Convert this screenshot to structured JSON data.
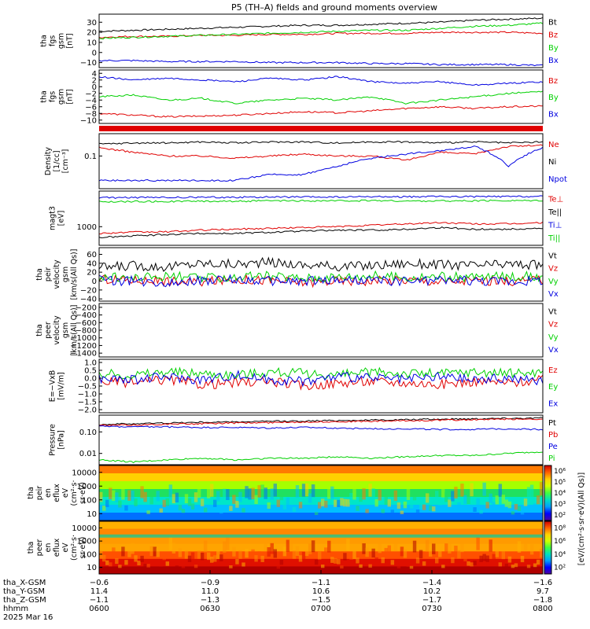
{
  "title": "P5 (TH–A) fields and ground moments overview",
  "colors": {
    "black": "#000000",
    "red": "#e00000",
    "green": "#00d000",
    "blue": "#0000e0"
  },
  "chart_data": [
    {
      "type": "line",
      "ylabel": [
        "tha",
        "fgs",
        "gsm",
        "[nT]"
      ],
      "yticks": [
        "30",
        "20",
        "10",
        "0",
        "−10"
      ],
      "ylim": [
        -15,
        38
      ],
      "series": [
        {
          "name": "Bt",
          "color": "#000000",
          "values": [
            21,
            22,
            23,
            24,
            25,
            26,
            27,
            27,
            28,
            29,
            30,
            32,
            33,
            34
          ]
        },
        {
          "name": "Bz",
          "color": "#e00000",
          "values": [
            15,
            16,
            16,
            17,
            17,
            18,
            18,
            19,
            19,
            19,
            20,
            20,
            20,
            19
          ]
        },
        {
          "name": "By",
          "color": "#00d000",
          "values": [
            14,
            15,
            16,
            17,
            18,
            19,
            20,
            21,
            22,
            22,
            24,
            26,
            27,
            29
          ]
        },
        {
          "name": "Bx",
          "color": "#0000e0",
          "values": [
            -8,
            -8,
            -9,
            -9,
            -9,
            -10,
            -10,
            -10,
            -11,
            -11,
            -12,
            -12,
            -12,
            -13
          ]
        }
      ]
    },
    {
      "type": "line",
      "ylabel": [
        "tha",
        "fgs",
        "gsm",
        "[nT]"
      ],
      "yticks": [
        "4",
        "2",
        "0",
        "−2",
        "−4",
        "−6",
        "−8",
        "−10"
      ],
      "ylim": [
        -11,
        5
      ],
      "series": [
        {
          "name": "Bz",
          "color": "#e00000",
          "values": [
            -8,
            -8.5,
            -9,
            -8.8,
            -8.5,
            -8,
            -7.5,
            -7.8,
            -7.2,
            -6.5,
            -6,
            -6.5,
            -6,
            -5.8
          ]
        },
        {
          "name": "By",
          "color": "#00d000",
          "values": [
            -3,
            -2.5,
            -4,
            -3.5,
            -5,
            -4,
            -3.5,
            -4,
            -3,
            -5,
            -4,
            -3,
            -2,
            -1.5
          ]
        },
        {
          "name": "Bx",
          "color": "#0000e0",
          "values": [
            3,
            2,
            2.5,
            2,
            1.5,
            2.5,
            2,
            3,
            1.5,
            1,
            1.5,
            0.5,
            1,
            1.5
          ]
        }
      ]
    },
    {
      "type": "line",
      "ylabel": [
        "Density",
        "[1/cc]",
        "[cm⁻³]"
      ],
      "yticks": [
        "0.1"
      ],
      "ylim": [
        0.02,
        0.3
      ],
      "log": true,
      "series": [
        {
          "name": "Ne",
          "color": "#e00000",
          "values": [
            0.15,
            0.12,
            0.1,
            0.1,
            0.09,
            0.1,
            0.11,
            0.1,
            0.1,
            0.08,
            0.12,
            0.11,
            0.16,
            0.17
          ]
        },
        {
          "name": "Ni",
          "color": "#000000",
          "values": [
            0.18,
            0.19,
            0.19,
            0.2,
            0.19,
            0.2,
            0.2,
            0.19,
            0.2,
            0.2,
            0.19,
            0.2,
            0.19,
            0.2
          ]
        },
        {
          "name": "Npot",
          "color": "#0000e0",
          "values": [
            0.03,
            0.03,
            0.03,
            0.03,
            0.03,
            0.04,
            0.04,
            0.06,
            0.09,
            0.11,
            0.13,
            0.16,
            0.06,
            0.15
          ]
        }
      ]
    },
    {
      "type": "line",
      "ylabel": [
        "magt3",
        "[eV]"
      ],
      "yticks": [
        "1000"
      ],
      "ylim": [
        300,
        10000
      ],
      "log": true,
      "series": [
        {
          "name": "Te⊥",
          "color": "#e00000",
          "values": [
            650,
            700,
            720,
            800,
            850,
            900,
            950,
            1000,
            1100,
            1200,
            1300,
            1200,
            1200,
            1300
          ]
        },
        {
          "name": "Te||",
          "color": "#000000",
          "values": [
            500,
            550,
            600,
            650,
            650,
            700,
            750,
            800,
            800,
            850,
            950,
            850,
            850,
            900
          ]
        },
        {
          "name": "Ti⊥",
          "color": "#0000e0",
          "values": [
            6500,
            6600,
            6600,
            6700,
            6700,
            6800,
            6800,
            6800,
            6900,
            6900,
            7000,
            7000,
            7000,
            7100
          ]
        },
        {
          "name": "Ti||",
          "color": "#00d000",
          "values": [
            5000,
            5100,
            5100,
            5200,
            5200,
            5300,
            5300,
            5300,
            5400,
            5200,
            5300,
            5300,
            5400,
            5500
          ]
        }
      ]
    },
    {
      "type": "line",
      "ylabel": [
        "tha",
        "peir",
        "velocity",
        "gsm",
        "[km/s(All Qs)]"
      ],
      "yticks": [
        "60",
        "40",
        "20",
        "0",
        "−20",
        "−40"
      ],
      "ylim": [
        -45,
        75
      ],
      "series": [
        {
          "name": "Vt",
          "color": "#000000",
          "values": [
            30,
            35,
            32,
            40,
            38,
            42,
            36,
            33,
            35,
            40,
            37,
            35,
            38,
            36
          ]
        },
        {
          "name": "Vz",
          "color": "#e00000",
          "values": [
            5,
            3,
            0,
            -2,
            4,
            2,
            -3,
            1,
            0,
            3,
            -1,
            2,
            0,
            1
          ]
        },
        {
          "name": "Vy",
          "color": "#00d000",
          "values": [
            10,
            8,
            12,
            6,
            9,
            11,
            7,
            10,
            12,
            8,
            10,
            9,
            11,
            10
          ]
        },
        {
          "name": "Vx",
          "color": "#0000e0",
          "values": [
            2,
            0,
            -2,
            1,
            3,
            0,
            -1,
            2,
            1,
            0,
            2,
            1,
            0,
            2
          ]
        }
      ]
    },
    {
      "type": "line",
      "ylabel": [
        "tha",
        "peer",
        "velocity",
        "gsm",
        "[km/s(All Qs)]"
      ],
      "yticks": [
        "−200",
        "−400",
        "−600",
        "−800",
        "−1000",
        "−1200",
        "−1400"
      ],
      "ylim": [
        -1500,
        -100
      ],
      "legend": [
        "Vt",
        "Vz",
        "Vy",
        "Vx"
      ],
      "legend_colors": [
        "#000000",
        "#e00000",
        "#00d000",
        "#0000e0"
      ],
      "series": []
    },
    {
      "type": "line",
      "ylabel": [
        "E=−VxB",
        "[mV/m]"
      ],
      "yticks": [
        "1.0",
        "0.5",
        "0.0",
        "−0.5",
        "−1.0",
        "−1.5",
        "−2.0"
      ],
      "ylim": [
        -2.2,
        1.2
      ],
      "series": [
        {
          "name": "Ez",
          "color": "#e00000",
          "values": [
            -0.2,
            -0.3,
            -0.1,
            -0.4,
            -0.3,
            -0.2,
            -0.5,
            -0.3,
            -0.2,
            -0.3,
            -0.4,
            -0.2,
            -0.3,
            -0.1
          ]
        },
        {
          "name": "Ey",
          "color": "#00d000",
          "values": [
            0.3,
            0.2,
            0.4,
            0.3,
            0.2,
            0.4,
            0.3,
            0.2,
            0.4,
            0.3,
            0.3,
            0.4,
            0.3,
            0.4
          ]
        },
        {
          "name": "Ex",
          "color": "#0000e0",
          "values": [
            0,
            -0.1,
            0.1,
            -0.1,
            0.2,
            -0.1,
            -0.2,
            0.1,
            0,
            -0.1,
            0.1,
            -0.1,
            0,
            -0.2
          ]
        }
      ]
    },
    {
      "type": "line",
      "ylabel": [
        "Pressure",
        "[nPa]"
      ],
      "yticks": [
        "0.10",
        "0.01"
      ],
      "ylim": [
        0.003,
        0.6
      ],
      "log": true,
      "series": [
        {
          "name": "Pt",
          "color": "#000000",
          "values": [
            0.22,
            0.24,
            0.26,
            0.28,
            0.29,
            0.31,
            0.32,
            0.34,
            0.35,
            0.37,
            0.39,
            0.41,
            0.43,
            0.44
          ]
        },
        {
          "name": "Pb",
          "color": "#e00000",
          "values": [
            0.2,
            0.21,
            0.23,
            0.24,
            0.26,
            0.27,
            0.29,
            0.3,
            0.31,
            0.33,
            0.35,
            0.37,
            0.39,
            0.4
          ]
        },
        {
          "name": "Pe",
          "color": "#0000e0",
          "values": [
            0.18,
            0.17,
            0.17,
            0.16,
            0.16,
            0.15,
            0.16,
            0.15,
            0.14,
            0.14,
            0.13,
            0.13,
            0.14,
            0.13
          ]
        },
        {
          "name": "Pi",
          "color": "#00d000",
          "values": [
            0.005,
            0.004,
            0.005,
            0.006,
            0.005,
            0.006,
            0.006,
            0.007,
            0.006,
            0.007,
            0.008,
            0.008,
            0.01,
            0.012
          ]
        }
      ]
    },
    {
      "type": "heatmap",
      "ylabel": [
        "tha",
        "peir",
        "en",
        "eflux",
        "eV",
        "(cm²·s·",
        "sr·eV)"
      ],
      "yticks": [
        "10000",
        "1000",
        "100",
        "10"
      ]
    },
    {
      "type": "heatmap",
      "ylabel": [
        "tha",
        "peer",
        "en",
        "eflux",
        "eV",
        "(cm²·s·",
        "sr·eV)"
      ],
      "yticks": [
        "10000",
        "1000",
        "100",
        "10"
      ]
    }
  ],
  "colorbar": {
    "label": "[eV/(cm²·s·sr·eV)(All Qs)]",
    "upper_ticks": [
      "10⁶",
      "10⁵",
      "10⁴",
      "10³",
      "10²"
    ],
    "lower_ticks": [
      "10⁸",
      "10⁶",
      "10⁴",
      "10²"
    ]
  },
  "xaxis": {
    "row_labels": [
      "tha_X-GSM",
      "tha_Y-GSM",
      "tha_Z-GSM",
      "hhmm",
      "2025 Mar 16"
    ],
    "columns": [
      [
        "−0.6",
        "11.4",
        "−1.1",
        "0600"
      ],
      [
        "−0.9",
        "11.0",
        "−1.3",
        "0630"
      ],
      [
        "−1.1",
        "10.6",
        "−1.5",
        "0700"
      ],
      [
        "−1.4",
        "10.2",
        "−1.7",
        "0730"
      ],
      [
        "−1.6",
        "9.7",
        "−1.8",
        "0800"
      ]
    ]
  }
}
